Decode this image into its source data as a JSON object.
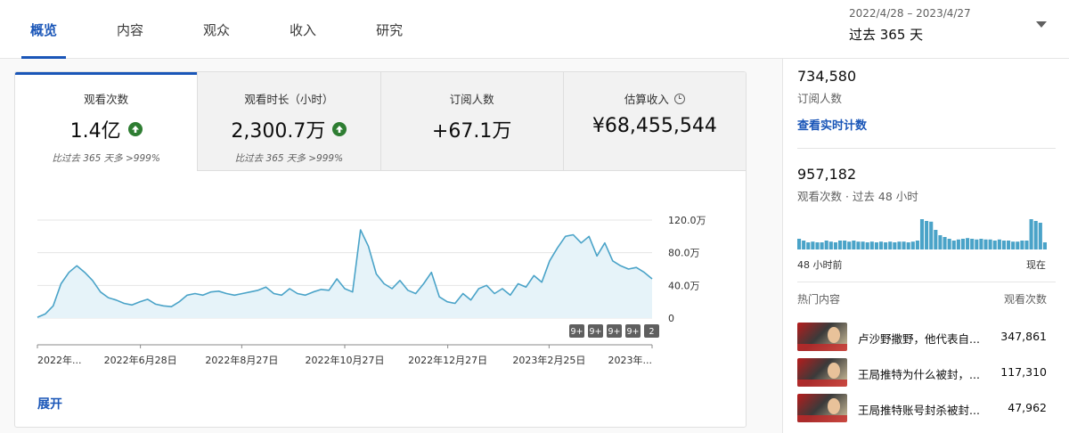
{
  "tabs": [
    {
      "label": "概览",
      "active": true
    },
    {
      "label": "内容",
      "active": false
    },
    {
      "label": "观众",
      "active": false
    },
    {
      "label": "收入",
      "active": false
    },
    {
      "label": "研究",
      "active": false
    }
  ],
  "date_range": {
    "range": "2022/4/28 – 2023/4/27",
    "label": "过去 365 天"
  },
  "metrics": [
    {
      "label": "观看次数",
      "value": "1.4亿",
      "comparison": "比过去 365 天多 >999%",
      "trend": "up",
      "active": true
    },
    {
      "label": "观看时长（小时）",
      "value": "2,300.7万",
      "comparison": "比过去 365 天多 >999%",
      "trend": "up",
      "active": false
    },
    {
      "label": "订阅人数",
      "value": "+67.1万",
      "comparison": "",
      "trend": "",
      "active": false
    },
    {
      "label": "估算收入",
      "value": "¥68,455,544",
      "comparison": "",
      "trend": "",
      "active": false
    }
  ],
  "expand_label": "展开",
  "chart_data": {
    "type": "area",
    "y_tick_labels": [
      "120.0万",
      "80.0万",
      "40.0万",
      "0"
    ],
    "y_ticks": [
      1200000,
      800000,
      400000,
      0
    ],
    "ylim": [
      0,
      1200000
    ],
    "x_labels": [
      "2022年...",
      "2022年6月28日",
      "2022年8月27日",
      "2022年10月27日",
      "2022年12月27日",
      "2023年2月25日",
      "2023年..."
    ],
    "x_dates": [
      "2022-04-28",
      "2022-06-28",
      "2022-08-27",
      "2022-10-27",
      "2022-12-27",
      "2023-02-25",
      "2023-04-27"
    ],
    "values_weekly_estimate": [
      10000,
      50000,
      150000,
      420000,
      560000,
      640000,
      560000,
      460000,
      320000,
      250000,
      220000,
      180000,
      160000,
      200000,
      230000,
      170000,
      150000,
      140000,
      200000,
      280000,
      300000,
      280000,
      320000,
      330000,
      300000,
      280000,
      300000,
      320000,
      340000,
      380000,
      300000,
      280000,
      360000,
      300000,
      280000,
      320000,
      350000,
      340000,
      480000,
      360000,
      320000,
      1080000,
      880000,
      540000,
      420000,
      360000,
      460000,
      340000,
      300000,
      420000,
      560000,
      260000,
      200000,
      180000,
      300000,
      220000,
      360000,
      400000,
      300000,
      360000,
      280000,
      420000,
      380000,
      520000,
      440000,
      700000,
      860000,
      1000000,
      1020000,
      920000,
      1000000,
      760000,
      920000,
      700000,
      640000,
      600000,
      620000,
      560000,
      480000
    ],
    "event_markers": [
      "9+",
      "9+",
      "9+",
      "9+",
      "2"
    ],
    "color": "#4aa3c8",
    "fill": "#e6f3f9",
    "grid": true
  },
  "side": {
    "subscriber_count": "734,580",
    "subscriber_label": "订阅人数",
    "realtime_link": "查看实时计数",
    "views_48h": "957,182",
    "views_48h_label": "观看次数 · 过去 48 小时",
    "mini_left": "48 小时前",
    "mini_right": "现在",
    "mini_bars": [
      0.3,
      0.25,
      0.2,
      0.22,
      0.2,
      0.2,
      0.25,
      0.22,
      0.2,
      0.25,
      0.25,
      0.22,
      0.25,
      0.22,
      0.22,
      0.2,
      0.22,
      0.2,
      0.22,
      0.2,
      0.22,
      0.2,
      0.22,
      0.22,
      0.2,
      0.22,
      0.25,
      0.85,
      0.8,
      0.78,
      0.55,
      0.4,
      0.35,
      0.3,
      0.25,
      0.28,
      0.3,
      0.32,
      0.3,
      0.28,
      0.3,
      0.28,
      0.28,
      0.25,
      0.28,
      0.25,
      0.25,
      0.22,
      0.22,
      0.25,
      0.25,
      0.85,
      0.8,
      0.75,
      0.2
    ],
    "top_content_head": "热门内容",
    "top_content_views_head": "观看次数",
    "top_content": [
      {
        "title": "卢沙野撒野，他代表自...",
        "views": "347,861"
      },
      {
        "title": "王局推特为什么被封，...",
        "views": "117,310"
      },
      {
        "title": "王局推特账号封杀被封...",
        "views": "47,962"
      }
    ]
  }
}
